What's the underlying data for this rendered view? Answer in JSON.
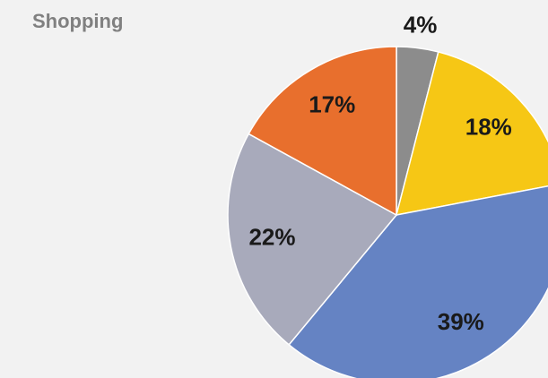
{
  "chart_data": {
    "type": "pie",
    "title": "Shopping",
    "values": [
      4,
      18,
      39,
      22,
      17
    ],
    "value_labels": [
      "4%",
      "18%",
      "39%",
      "22%",
      "17%"
    ],
    "colors": [
      "#8c8c8c",
      "#f6c715",
      "#6583c3",
      "#a8aabb",
      "#e86f2d"
    ]
  }
}
